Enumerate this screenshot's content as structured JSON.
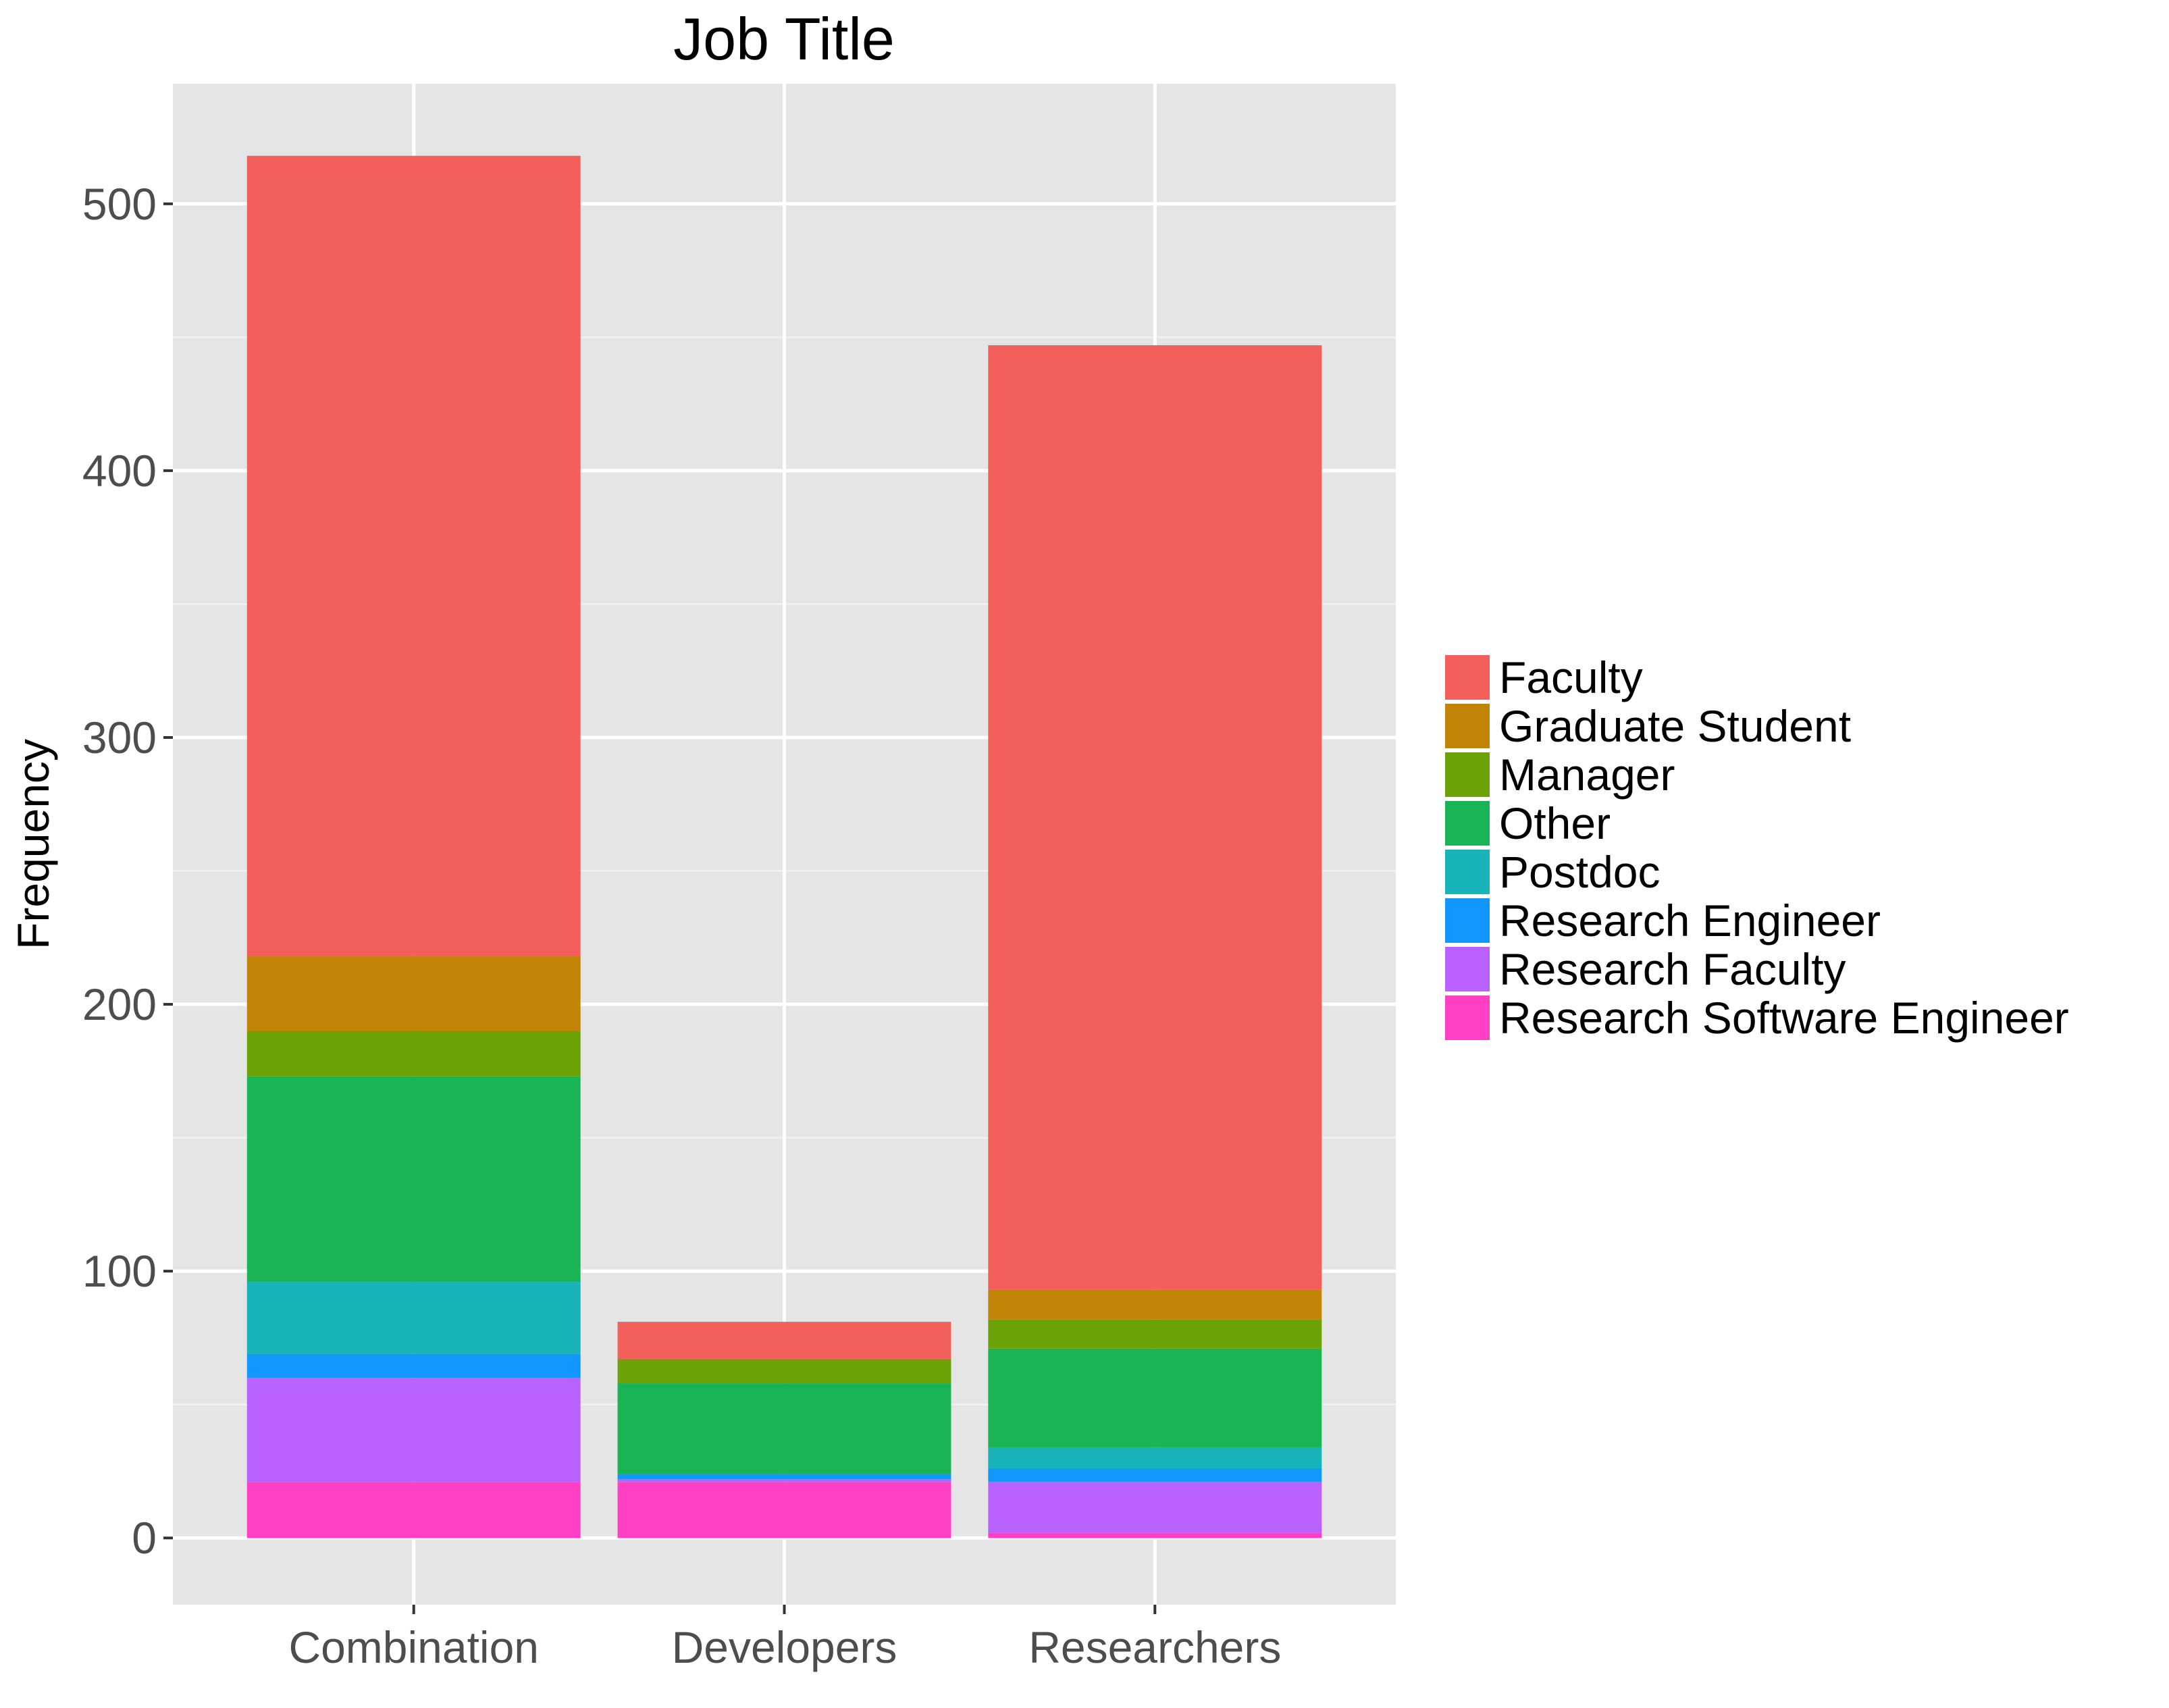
{
  "chart_data": {
    "type": "bar",
    "stacked": true,
    "title": "Job Title",
    "xlabel": "",
    "ylabel": "Frequency",
    "ylim": [
      -25,
      545
    ],
    "yticks": [
      0,
      100,
      200,
      300,
      400,
      500
    ],
    "grid": true,
    "legend_position": "right",
    "categories": [
      "Combination",
      "Developers",
      "Researchers"
    ],
    "series": [
      {
        "name": "Research Software Engineer",
        "color": "#FF40C5",
        "values": [
          21,
          21,
          2
        ]
      },
      {
        "name": "Research Faculty",
        "color": "#BA62FF",
        "values": [
          39,
          1,
          19
        ]
      },
      {
        "name": "Research Engineer",
        "color": "#1297FF",
        "values": [
          9,
          2,
          5
        ]
      },
      {
        "name": "Postdoc",
        "color": "#19B4BA",
        "values": [
          27,
          0,
          8
        ]
      },
      {
        "name": "Other",
        "color": "#18B455",
        "values": [
          77,
          34,
          37
        ]
      },
      {
        "name": "Manager",
        "color": "#6BA205",
        "values": [
          17,
          9,
          11
        ]
      },
      {
        "name": "Graduate Student",
        "color": "#C18406",
        "values": [
          28,
          0,
          11
        ]
      },
      {
        "name": "Faculty",
        "color": "#F35F5A",
        "values": [
          300,
          14,
          354
        ]
      }
    ],
    "legend_order": [
      "Faculty",
      "Graduate Student",
      "Manager",
      "Other",
      "Postdoc",
      "Research Engineer",
      "Research Faculty",
      "Research Software Engineer"
    ]
  }
}
